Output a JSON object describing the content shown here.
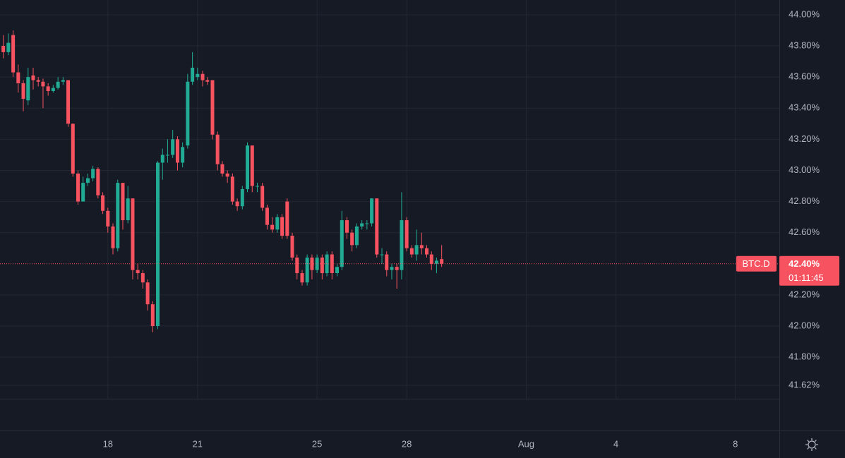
{
  "chart_data": {
    "type": "candlestick",
    "symbol": "BTC.D",
    "last_price": 42.4,
    "last_price_label": "42.40%",
    "countdown": "01:11:45",
    "up_color": "#22ab94",
    "down_color": "#f7525f",
    "grid": true,
    "xlim": [
      14.39,
      40.47
    ],
    "xticks": [
      18,
      21,
      25,
      28,
      {
        "value": 32,
        "label": "Aug"
      },
      {
        "value": 35,
        "label": "4"
      },
      {
        "value": 39,
        "label": "8"
      }
    ],
    "ylim": [
      41.533,
      44.095
    ],
    "yticks": [
      {
        "value": 44.0,
        "label": "44.00%"
      },
      {
        "value": 43.8,
        "label": "43.80%"
      },
      {
        "value": 43.6,
        "label": "43.60%"
      },
      {
        "value": 43.4,
        "label": "43.40%"
      },
      {
        "value": 43.2,
        "label": "43.20%"
      },
      {
        "value": 43.0,
        "label": "43.00%"
      },
      {
        "value": 42.8,
        "label": "42.80%"
      },
      {
        "value": 42.6,
        "label": "42.60%"
      },
      {
        "value": 42.2,
        "label": "42.20%"
      },
      {
        "value": 42.0,
        "label": "42.00%"
      },
      {
        "value": 41.8,
        "label": "41.80%"
      },
      {
        "value": 41.62,
        "label": "41.62%"
      }
    ],
    "x": [
      14.5,
      14.67,
      14.83,
      15,
      15.17,
      15.33,
      15.5,
      15.67,
      15.83,
      16,
      16.17,
      16.33,
      16.5,
      16.67,
      16.83,
      17,
      17.17,
      17.33,
      17.5,
      17.67,
      17.83,
      18,
      18.17,
      18.33,
      18.5,
      18.67,
      18.83,
      19,
      19.17,
      19.33,
      19.5,
      19.67,
      19.83,
      20,
      20.17,
      20.33,
      20.5,
      20.67,
      20.83,
      21,
      21.17,
      21.33,
      21.5,
      21.67,
      21.83,
      22,
      22.17,
      22.33,
      22.5,
      22.67,
      22.83,
      23,
      23.17,
      23.33,
      23.5,
      23.67,
      23.83,
      24,
      24.17,
      24.33,
      24.5,
      24.67,
      24.83,
      25,
      25.17,
      25.33,
      25.5,
      25.67,
      25.83,
      26,
      26.17,
      26.33,
      26.5,
      26.67,
      26.83,
      27,
      27.17,
      27.33,
      27.5,
      27.67,
      27.83,
      28,
      28.17,
      28.33,
      28.5,
      28.67,
      28.83,
      29,
      29.17
    ],
    "open": [
      43.8,
      43.76,
      43.87,
      43.63,
      43.56,
      43.45,
      43.61,
      43.58,
      43.57,
      43.54,
      43.51,
      43.53,
      43.57,
      43.58,
      43.3,
      42.98,
      42.8,
      42.92,
      42.95,
      43.01,
      42.84,
      42.74,
      42.64,
      42.5,
      42.92,
      42.68,
      42.82,
      42.36,
      42.34,
      42.28,
      42.14,
      42.0,
      43.05,
      43.1,
      43.1,
      43.2,
      43.05,
      43.16,
      43.57,
      43.6,
      43.62,
      43.58,
      43.58,
      43.23,
      43.04,
      42.98,
      42.96,
      42.8,
      42.77,
      42.88,
      43.16,
      42.9,
      42.9,
      42.76,
      42.65,
      42.62,
      42.7,
      42.8,
      42.58,
      42.44,
      42.34,
      42.28,
      42.44,
      42.36,
      42.44,
      42.34,
      42.46,
      42.34,
      42.38,
      42.68,
      42.6,
      42.52,
      42.64,
      42.66,
      42.66,
      42.82,
      42.46,
      42.46,
      42.36,
      42.38,
      42.36,
      42.68,
      42.5,
      42.46,
      42.52,
      42.5,
      42.46,
      42.4,
      42.43
    ],
    "high": [
      43.87,
      43.88,
      43.9,
      43.68,
      43.58,
      43.66,
      43.66,
      43.6,
      43.59,
      43.56,
      43.55,
      43.6,
      43.6,
      43.58,
      43.3,
      43.0,
      42.96,
      42.98,
      43.03,
      43.02,
      42.86,
      42.76,
      42.66,
      42.94,
      42.92,
      42.9,
      42.82,
      42.4,
      42.36,
      42.3,
      42.16,
      43.06,
      43.14,
      43.2,
      43.26,
      43.22,
      43.18,
      43.62,
      43.76,
      43.66,
      43.64,
      43.6,
      43.58,
      43.25,
      43.06,
      43.0,
      42.98,
      42.82,
      42.9,
      43.18,
      43.16,
      42.92,
      42.92,
      42.78,
      42.7,
      42.72,
      42.72,
      42.82,
      42.6,
      42.46,
      42.36,
      42.46,
      42.46,
      42.46,
      42.46,
      42.48,
      42.48,
      42.4,
      42.74,
      42.7,
      42.62,
      42.66,
      42.68,
      42.68,
      42.82,
      42.82,
      42.5,
      42.48,
      42.4,
      42.4,
      42.86,
      42.7,
      42.52,
      42.62,
      42.6,
      42.52,
      42.48,
      42.44,
      42.52
    ],
    "low": [
      43.72,
      43.74,
      43.6,
      43.5,
      43.38,
      43.42,
      43.52,
      43.54,
      43.4,
      43.48,
      43.5,
      43.52,
      43.55,
      43.28,
      42.96,
      42.78,
      42.8,
      42.9,
      42.93,
      42.82,
      42.72,
      42.6,
      42.46,
      42.48,
      42.62,
      42.66,
      42.3,
      42.3,
      42.24,
      42.1,
      41.96,
      41.98,
      42.94,
      43.05,
      43.08,
      43.0,
      43.02,
      43.14,
      43.55,
      43.58,
      43.54,
      43.55,
      43.2,
      43.0,
      42.96,
      42.92,
      42.78,
      42.74,
      42.75,
      42.86,
      42.86,
      42.86,
      42.74,
      42.62,
      42.6,
      42.6,
      42.56,
      42.56,
      42.42,
      42.3,
      42.26,
      42.26,
      42.3,
      42.34,
      42.3,
      42.32,
      42.3,
      42.32,
      42.36,
      42.56,
      42.48,
      42.5,
      42.62,
      42.62,
      42.64,
      42.44,
      42.4,
      42.32,
      42.3,
      42.24,
      42.3,
      42.48,
      42.44,
      42.42,
      42.46,
      42.44,
      42.36,
      42.34,
      42.38
    ],
    "close": [
      43.76,
      43.82,
      43.63,
      43.56,
      43.46,
      43.6,
      43.58,
      43.57,
      43.54,
      43.51,
      43.53,
      43.57,
      43.58,
      43.3,
      42.98,
      42.8,
      42.92,
      42.95,
      43.01,
      42.84,
      42.74,
      42.64,
      42.5,
      42.92,
      42.68,
      42.82,
      42.36,
      42.34,
      42.28,
      42.14,
      42.0,
      43.05,
      43.1,
      43.1,
      43.2,
      43.05,
      43.15,
      43.57,
      43.66,
      43.62,
      43.58,
      43.57,
      43.23,
      43.04,
      42.98,
      42.96,
      42.8,
      42.77,
      42.88,
      43.16,
      42.9,
      42.9,
      42.76,
      42.65,
      42.62,
      42.7,
      42.58,
      42.58,
      42.44,
      42.34,
      42.28,
      42.44,
      42.36,
      42.44,
      42.34,
      42.46,
      42.34,
      42.38,
      42.68,
      42.6,
      42.52,
      42.64,
      42.66,
      42.66,
      42.82,
      42.46,
      42.46,
      42.36,
      42.38,
      42.36,
      42.68,
      42.5,
      42.46,
      42.52,
      42.5,
      42.46,
      42.4,
      42.42,
      42.4
    ]
  }
}
